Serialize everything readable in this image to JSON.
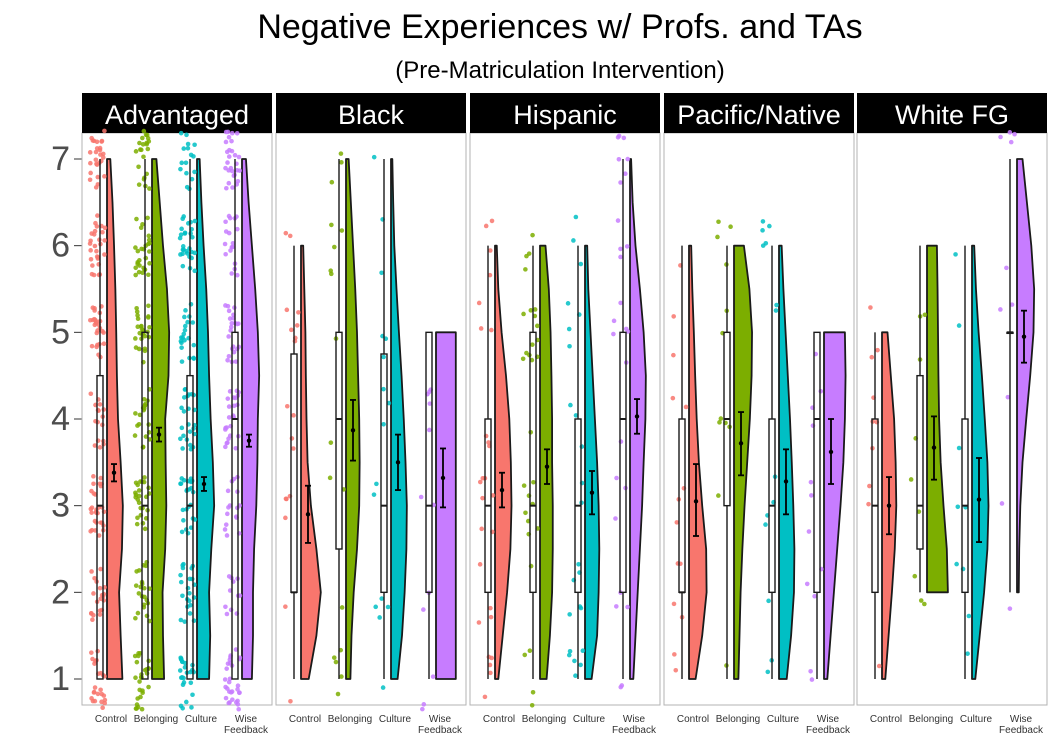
{
  "chart_data": {
    "type": "raincloud",
    "title": "Negative Experiences w/ Profs. and TAs",
    "subtitle": "(Pre-Matriculation Intervention)",
    "xlabel": "",
    "ylabel": "",
    "ylim": [
      0.7,
      7.3
    ],
    "yticks": [
      "1",
      "2",
      "3",
      "4",
      "5",
      "6",
      "7"
    ],
    "categories": [
      "Control",
      "Belonging",
      "Culture",
      "Wise Feedback"
    ],
    "category_tick_labels": [
      [
        "Control"
      ],
      [
        "Belonging"
      ],
      [
        "Culture"
      ],
      [
        "Wise",
        "Feedback"
      ]
    ],
    "colors": [
      "#F8766D",
      "#7CAE00",
      "#00BFC4",
      "#C77CFF"
    ],
    "grid": false,
    "legend": "none",
    "panels": [
      {
        "name": "Advantaged",
        "groups": [
          {
            "category": "Control",
            "mean": 3.38,
            "ci": [
              3.28,
              3.48
            ],
            "box": {
              "min": 1,
              "q1": 1,
              "median": 3,
              "q3": 4.5,
              "max": 7
            },
            "violin_range": [
              1,
              7
            ],
            "n_points": 170,
            "density": [
              0.7,
              0.62,
              0.55,
              0.68,
              0.72,
              0.62,
              0.5,
              0.45,
              0.42,
              0.38,
              0.32,
              0.25,
              0.15
            ]
          },
          {
            "category": "Belonging",
            "mean": 3.82,
            "ci": [
              3.74,
              3.9
            ],
            "box": {
              "min": 1,
              "q1": 1,
              "median": 3,
              "q3": 5,
              "max": 7
            },
            "violin_range": [
              1,
              7
            ],
            "n_points": 170,
            "density": [
              0.55,
              0.5,
              0.48,
              0.6,
              0.65,
              0.62,
              0.6,
              0.75,
              0.78,
              0.68,
              0.5,
              0.35,
              0.2
            ]
          },
          {
            "category": "Culture",
            "mean": 3.25,
            "ci": [
              3.17,
              3.33
            ],
            "box": {
              "min": 1,
              "q1": 1,
              "median": 3,
              "q3": 4.5,
              "max": 7
            },
            "violin_range": [
              1,
              7
            ],
            "n_points": 160,
            "density": [
              0.55,
              0.6,
              0.55,
              0.65,
              0.78,
              0.72,
              0.62,
              0.55,
              0.5,
              0.42,
              0.3,
              0.2,
              0.12
            ]
          },
          {
            "category": "Wise Feedback",
            "mean": 3.75,
            "ci": [
              3.68,
              3.82
            ],
            "box": {
              "min": 1,
              "q1": 1,
              "median": 4,
              "q3": 5,
              "max": 7
            },
            "violin_range": [
              1,
              7
            ],
            "n_points": 150,
            "density": [
              0.45,
              0.5,
              0.5,
              0.55,
              0.65,
              0.7,
              0.72,
              0.78,
              0.72,
              0.6,
              0.45,
              0.3,
              0.18
            ]
          }
        ]
      },
      {
        "name": "Black",
        "groups": [
          {
            "category": "Control",
            "mean": 2.9,
            "ci": [
              2.57,
              3.23
            ],
            "box": {
              "min": 1,
              "q1": 2,
              "median": 2,
              "q3": 4.75,
              "max": 6
            },
            "violin_range": [
              1,
              6
            ],
            "n_points": 18,
            "density": [
              0.35,
              0.7,
              0.9,
              0.7,
              0.45,
              0.3,
              0.25,
              0.22,
              0.2,
              0.15,
              0.1
            ]
          },
          {
            "category": "Belonging",
            "mean": 3.87,
            "ci": [
              3.52,
              4.22
            ],
            "box": {
              "min": 1,
              "q1": 2.5,
              "median": 4,
              "q3": 5,
              "max": 7
            },
            "violin_range": [
              1,
              7
            ],
            "n_points": 18,
            "density": [
              0.2,
              0.25,
              0.35,
              0.5,
              0.6,
              0.62,
              0.6,
              0.55,
              0.5,
              0.42,
              0.32,
              0.22,
              0.12
            ]
          },
          {
            "category": "Culture",
            "mean": 3.5,
            "ci": [
              3.18,
              3.82
            ],
            "box": {
              "min": 1,
              "q1": 2,
              "median": 3,
              "q3": 4.75,
              "max": 7
            },
            "violin_range": [
              1,
              7
            ],
            "n_points": 16,
            "density": [
              0.3,
              0.5,
              0.62,
              0.7,
              0.72,
              0.66,
              0.58,
              0.48,
              0.36,
              0.25,
              0.15,
              0.1,
              0.06
            ]
          },
          {
            "category": "Wise Feedback",
            "mean": 3.32,
            "ci": [
              2.98,
              3.66
            ],
            "box": {
              "min": 1,
              "q1": 2,
              "median": 3,
              "q3": 5,
              "max": 5
            },
            "violin_range": [
              1,
              5
            ],
            "n_points": 12,
            "density": [
              0.9,
              0.9,
              0.9,
              0.9,
              0.9,
              0.9,
              0.9,
              0.9,
              0.9
            ]
          }
        ]
      },
      {
        "name": "Hispanic",
        "groups": [
          {
            "category": "Control",
            "mean": 3.18,
            "ci": [
              2.98,
              3.38
            ],
            "box": {
              "min": 1,
              "q1": 2,
              "median": 3,
              "q3": 4,
              "max": 6
            },
            "violin_range": [
              1,
              6
            ],
            "n_points": 26,
            "density": [
              0.15,
              0.35,
              0.55,
              0.7,
              0.75,
              0.72,
              0.65,
              0.5,
              0.3,
              0.15,
              0.08
            ]
          },
          {
            "category": "Belonging",
            "mean": 3.45,
            "ci": [
              3.25,
              3.65
            ],
            "box": {
              "min": 1,
              "q1": 2,
              "median": 3,
              "q3": 5,
              "max": 6
            },
            "violin_range": [
              1,
              6
            ],
            "n_points": 30,
            "density": [
              0.3,
              0.45,
              0.55,
              0.58,
              0.58,
              0.55,
              0.55,
              0.52,
              0.48,
              0.4,
              0.25
            ]
          },
          {
            "category": "Culture",
            "mean": 3.15,
            "ci": [
              2.9,
              3.4
            ],
            "box": {
              "min": 1,
              "q1": 2,
              "median": 3,
              "q3": 4,
              "max": 6
            },
            "violin_range": [
              1,
              6
            ],
            "n_points": 24,
            "density": [
              0.3,
              0.55,
              0.62,
              0.65,
              0.62,
              0.55,
              0.45,
              0.35,
              0.25,
              0.15,
              0.1
            ]
          },
          {
            "category": "Wise Feedback",
            "mean": 4.03,
            "ci": [
              3.83,
              4.23
            ],
            "box": {
              "min": 1,
              "q1": 2,
              "median": 4,
              "q3": 5,
              "max": 7
            },
            "violin_range": [
              1,
              7
            ],
            "n_points": 26,
            "density": [
              0.15,
              0.25,
              0.35,
              0.45,
              0.55,
              0.62,
              0.7,
              0.72,
              0.62,
              0.45,
              0.25,
              0.12,
              0.05
            ]
          }
        ]
      },
      {
        "name": "Pacific/Native",
        "groups": [
          {
            "category": "Control",
            "mean": 3.05,
            "ci": [
              2.65,
              3.48
            ],
            "box": {
              "min": 1,
              "q1": 2,
              "median": 2,
              "q3": 4,
              "max": 6
            },
            "violin_range": [
              1,
              6
            ],
            "n_points": 14,
            "density": [
              0.3,
              0.6,
              0.8,
              0.78,
              0.6,
              0.45,
              0.35,
              0.28,
              0.22,
              0.15,
              0.1
            ]
          },
          {
            "category": "Belonging",
            "mean": 3.72,
            "ci": [
              3.35,
              4.08
            ],
            "box": {
              "min": 1,
              "q1": 3,
              "median": 4,
              "q3": 5,
              "max": 6
            },
            "violin_range": [
              1,
              6
            ],
            "n_points": 12,
            "density": [
              0.2,
              0.25,
              0.3,
              0.38,
              0.48,
              0.6,
              0.72,
              0.8,
              0.82,
              0.7,
              0.45
            ]
          },
          {
            "category": "Culture",
            "mean": 3.28,
            "ci": [
              2.9,
              3.65
            ],
            "box": {
              "min": 1,
              "q1": 2,
              "median": 3,
              "q3": 4,
              "max": 6
            },
            "violin_range": [
              1,
              6
            ],
            "n_points": 14,
            "density": [
              0.35,
              0.55,
              0.68,
              0.7,
              0.65,
              0.58,
              0.5,
              0.4,
              0.3,
              0.2,
              0.12
            ]
          },
          {
            "category": "Wise Feedback",
            "mean": 3.62,
            "ci": [
              3.25,
              4.0
            ],
            "box": {
              "min": 1,
              "q1": 2,
              "median": 4,
              "q3": 5,
              "max": 5
            },
            "violin_range": [
              1,
              5
            ],
            "n_points": 12,
            "density": [
              0.15,
              0.3,
              0.45,
              0.6,
              0.75,
              0.88,
              0.95,
              0.98,
              0.95
            ]
          }
        ]
      },
      {
        "name": "White FG",
        "groups": [
          {
            "category": "Control",
            "mean": 3.0,
            "ci": [
              2.67,
              3.33
            ],
            "box": {
              "min": 1,
              "q1": 2,
              "median": 3,
              "q3": 4,
              "max": 5
            },
            "violin_range": [
              1,
              5
            ],
            "n_points": 10,
            "density": [
              0.15,
              0.3,
              0.45,
              0.58,
              0.65,
              0.62,
              0.55,
              0.4,
              0.25
            ]
          },
          {
            "category": "Belonging",
            "mean": 3.67,
            "ci": [
              3.3,
              4.03
            ],
            "box": {
              "min": 2,
              "q1": 2.5,
              "median": 3,
              "q3": 4.5,
              "max": 6
            },
            "violin_range": [
              2,
              6
            ],
            "n_points": 9,
            "density": [
              0.95,
              0.9,
              0.75,
              0.62,
              0.55,
              0.52,
              0.5,
              0.48,
              0.45
            ]
          },
          {
            "category": "Culture",
            "mean": 3.07,
            "ci": [
              2.58,
              3.55
            ],
            "box": {
              "min": 1,
              "q1": 2,
              "median": 3,
              "q3": 4,
              "max": 6
            },
            "violin_range": [
              1,
              6
            ],
            "n_points": 9,
            "density": [
              0.15,
              0.35,
              0.55,
              0.7,
              0.75,
              0.7,
              0.58,
              0.45,
              0.3,
              0.18,
              0.1
            ]
          },
          {
            "category": "Wise Feedback",
            "mean": 4.95,
            "ci": [
              4.65,
              5.25
            ],
            "box": {
              "min": 2,
              "q1": 5,
              "median": 5,
              "q3": 5,
              "max": 7
            },
            "violin_range": [
              2,
              7
            ],
            "n_points": 10,
            "density": [
              0.08,
              0.1,
              0.15,
              0.25,
              0.42,
              0.6,
              0.75,
              0.78,
              0.65,
              0.45,
              0.25
            ]
          }
        ]
      }
    ]
  }
}
